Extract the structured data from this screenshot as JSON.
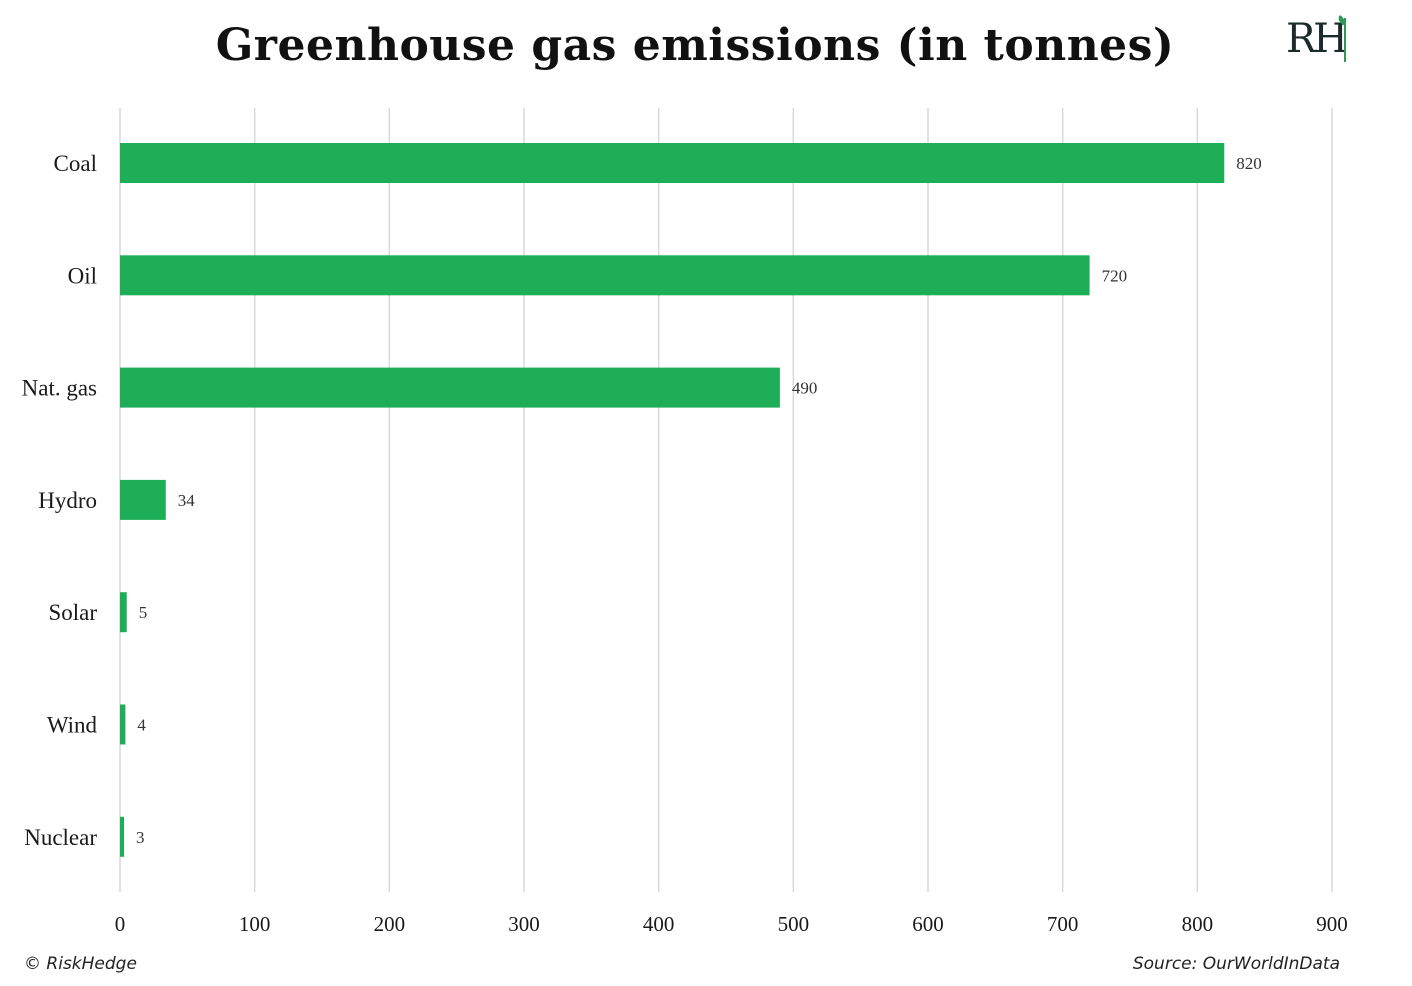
{
  "logo": {
    "text": "RH"
  },
  "footer": {
    "copyright": "© RiskHedge",
    "source": "Source: OurWorldInData"
  },
  "chart_data": {
    "type": "bar",
    "orientation": "horizontal",
    "title": "Greenhouse gas emissions (in tonnes)",
    "categories": [
      "Coal",
      "Oil",
      "Nat. gas",
      "Hydro",
      "Solar",
      "Wind",
      "Nuclear"
    ],
    "values": [
      820,
      720,
      490,
      34,
      5,
      4,
      3
    ],
    "data_labels": [
      "820",
      "720",
      "490",
      "34",
      "5",
      "4",
      "3"
    ],
    "xlim": [
      0,
      900
    ],
    "xticks": [
      0,
      100,
      200,
      300,
      400,
      500,
      600,
      700,
      800,
      900
    ],
    "xtick_labels": [
      "0",
      "100",
      "200",
      "300",
      "400",
      "500",
      "600",
      "700",
      "800",
      "900"
    ],
    "bar_color": "#1eae57",
    "grid": "vertical",
    "grid_color": "#d9d9d9",
    "legend": "none"
  }
}
